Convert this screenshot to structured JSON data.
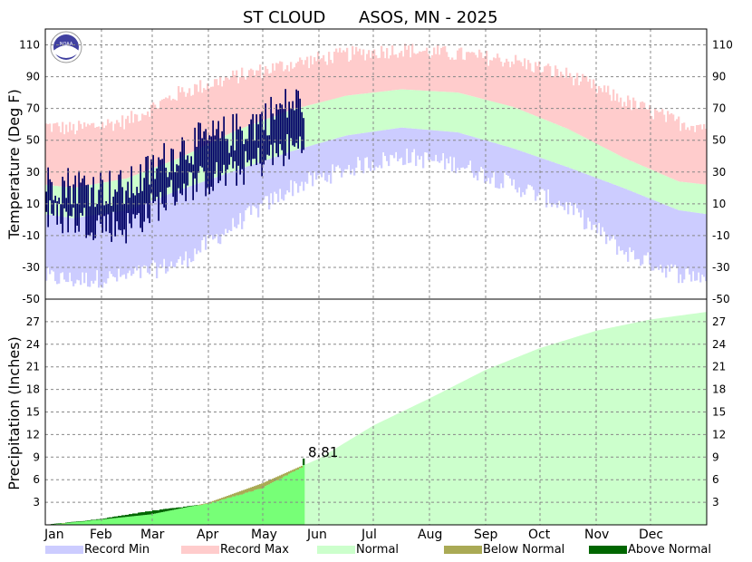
{
  "chart_data": {
    "type": "area",
    "title_station": "ST CLOUD",
    "title_rest": "ASOS, MN - 2025",
    "x_months": [
      "Jan",
      "Feb",
      "Mar",
      "Apr",
      "May",
      "Jun",
      "Jul",
      "Aug",
      "Sep",
      "Oct",
      "Nov",
      "Dec"
    ],
    "days_in_year": 365,
    "temperature_panel": {
      "ylabel": "Temperature (Deg F)",
      "ylim": [
        -50,
        120
      ],
      "ticks": [
        110,
        90,
        70,
        50,
        30,
        10,
        -10,
        -30,
        -50
      ],
      "record_max_color": "#ffcccc",
      "record_min_color": "#ccccff",
      "normal_color": "#ccffcc",
      "observed_color": "#000066",
      "normal_high_by_month": [
        20,
        26,
        39,
        56,
        69,
        78,
        82,
        80,
        71,
        57,
        39,
        24
      ],
      "normal_low_by_month": [
        1,
        6,
        19,
        31,
        43,
        53,
        58,
        55,
        45,
        33,
        20,
        6
      ],
      "record_high_by_month": [
        57,
        62,
        80,
        90,
        98,
        104,
        107,
        104,
        100,
        91,
        75,
        61
      ],
      "record_low_by_month": [
        -38,
        -36,
        -27,
        -3,
        20,
        32,
        40,
        35,
        22,
        8,
        -20,
        -34
      ],
      "observed_high_by_month": [
        22,
        19,
        45,
        55,
        73
      ],
      "observed_low_by_month": [
        0,
        -5,
        20,
        30,
        45
      ]
    },
    "precipitation_panel": {
      "ylabel": "Precipitation (Inches)",
      "ylim": [
        0,
        30
      ],
      "ticks": [
        27,
        24,
        21,
        18,
        15,
        12,
        9,
        6,
        3
      ],
      "normal_cumulative_by_month_end": [
        0.7,
        1.4,
        2.9,
        5.5,
        8.8,
        13.2,
        16.8,
        20.6,
        23.5,
        25.8,
        27.3,
        28.3
      ],
      "observed_cumulative_by_month_end": [
        0.8,
        1.9,
        2.8,
        4.9,
        8.81
      ],
      "current_total_label": "8.81",
      "below_normal_color": "#aaaa55",
      "above_normal_color": "#006600",
      "observed_fill_color": "#77ff77",
      "normal_fill_color": "#ccffcc"
    },
    "legend": [
      {
        "label": "Record Min",
        "color": "#ccccff"
      },
      {
        "label": "Record Max",
        "color": "#ffcccc"
      },
      {
        "label": "Normal",
        "color": "#ccffcc"
      },
      {
        "label": "Below Normal",
        "color": "#aaaa55"
      },
      {
        "label": "Above Normal",
        "color": "#006600"
      }
    ],
    "logo_text": "NOAA"
  }
}
